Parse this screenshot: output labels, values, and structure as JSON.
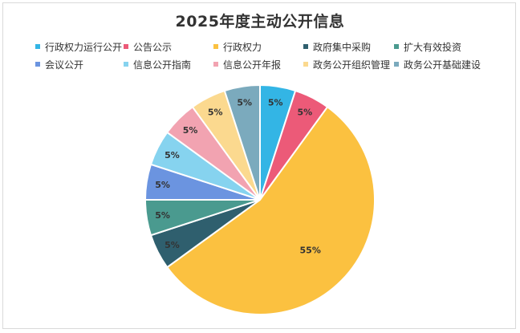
{
  "chart_data": {
    "type": "pie",
    "title": "2025年度主动公开信息",
    "legend_position": "top",
    "slices": [
      {
        "label": "行政权力运行公开",
        "value": 5,
        "value_label": "5%",
        "color": "#33b5e5"
      },
      {
        "label": "公告公示",
        "value": 5,
        "value_label": "5%",
        "color": "#ec5a78"
      },
      {
        "label": "行政权力",
        "value": 55,
        "value_label": "55%",
        "color": "#fbc140"
      },
      {
        "label": "政府集中采购",
        "value": 5,
        "value_label": "5%",
        "color": "#2f5f6e"
      },
      {
        "label": "扩大有效投资",
        "value": 5,
        "value_label": "5%",
        "color": "#4a9a8f"
      },
      {
        "label": "会议公开",
        "value": 5,
        "value_label": "5%",
        "color": "#6b94e0"
      },
      {
        "label": "信息公开指南",
        "value": 5,
        "value_label": "5%",
        "color": "#86d3ef"
      },
      {
        "label": "信息公开年报",
        "value": 5,
        "value_label": "5%",
        "color": "#f2a3b1"
      },
      {
        "label": "政务公开组织管理",
        "value": 5,
        "value_label": "5%",
        "color": "#fbd98f"
      },
      {
        "label": "政务公开基础建设",
        "value": 5,
        "value_label": "5%",
        "color": "#7baabd"
      }
    ]
  }
}
